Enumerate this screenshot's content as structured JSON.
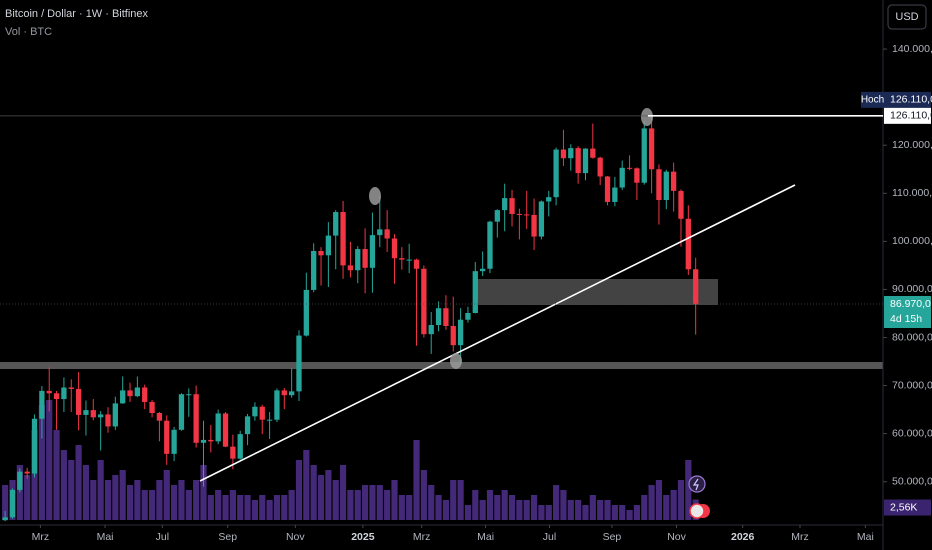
{
  "chart_data": {
    "type": "candlestick",
    "title": "Bitcoin / Dollar · 1W · Bitfinex",
    "currency": "USD",
    "up_color": "#26a69a",
    "down_color": "#f23645",
    "ylim": [
      41000,
      150000
    ],
    "yticks": [
      {
        "value": 50000,
        "label": "50.000,0"
      },
      {
        "value": 60000,
        "label": "60.000,0"
      },
      {
        "value": 70000,
        "label": "70.000,0"
      },
      {
        "value": 80000,
        "label": "80.000,0"
      },
      {
        "value": 90000,
        "label": "90.000,0"
      },
      {
        "value": 100000,
        "label": "100.000,0"
      },
      {
        "value": 110000,
        "label": "110.000,0"
      },
      {
        "value": 120000,
        "label": "120.000,0"
      },
      {
        "value": 140000,
        "label": "140.000,0"
      }
    ],
    "xlim": [
      -0.7,
      119.5
    ],
    "xticks": [
      {
        "value": 4.8,
        "label": "Mrz"
      },
      {
        "value": 13.6,
        "label": "Mai"
      },
      {
        "value": 21.4,
        "label": "Jul"
      },
      {
        "value": 30.3,
        "label": "Sep"
      },
      {
        "value": 39.5,
        "label": "Nov"
      },
      {
        "value": 48.7,
        "label": "2025"
      },
      {
        "value": 56.7,
        "label": "Mrz"
      },
      {
        "value": 65.4,
        "label": "Mai"
      },
      {
        "value": 74.1,
        "label": "Jul"
      },
      {
        "value": 82.6,
        "label": "Sep"
      },
      {
        "value": 91.4,
        "label": "Nov"
      },
      {
        "value": 100.4,
        "label": "2026"
      },
      {
        "value": 108.2,
        "label": "Mrz"
      },
      {
        "value": 117.1,
        "label": "Mai"
      }
    ],
    "open": [
      42000,
      42600,
      48300,
      52100,
      51700,
      63100,
      68900,
      68400,
      67200,
      69600,
      69300,
      63900,
      64900,
      63400,
      64000,
      61500,
      66300,
      69000,
      67800,
      69600,
      66600,
      64300,
      62700,
      55800,
      60800,
      68200,
      68200,
      58100,
      58700,
      58400,
      64200,
      57300,
      54800,
      59900,
      63600,
      65600,
      62900,
      62900,
      69000,
      68000,
      68800,
      80400,
      89900,
      98000,
      97100,
      101200,
      106100,
      95000,
      94000,
      98400,
      94500,
      101300,
      102500,
      100600,
      96500,
      96200,
      96200,
      94300,
      80700,
      82600,
      86100,
      82400,
      78400,
      83700,
      85100,
      93800,
      94300,
      104100,
      106500,
      109000,
      105700,
      105600,
      105500,
      101000,
      108300,
      109200,
      119100,
      117300,
      119400,
      114200,
      119300,
      117400,
      113500,
      108200,
      111200,
      115300,
      115200,
      112200,
      123500,
      115000,
      108600,
      114500,
      110500,
      104700,
      94200
    ],
    "high": [
      43900,
      48600,
      52800,
      52900,
      64000,
      69900,
      73800,
      68900,
      71700,
      71300,
      72800,
      66900,
      67200,
      64700,
      65500,
      67700,
      71900,
      70600,
      71900,
      70200,
      67000,
      64500,
      63800,
      61400,
      68400,
      69400,
      70000,
      62700,
      61800,
      65000,
      64500,
      59800,
      60600,
      64100,
      66500,
      66000,
      64500,
      69400,
      69500,
      73600,
      81500,
      93500,
      99600,
      98800,
      104000,
      106500,
      108400,
      99900,
      99000,
      102700,
      106000,
      109400,
      106500,
      101500,
      98800,
      99500,
      96400,
      95000,
      85300,
      87500,
      88800,
      88500,
      86100,
      86400,
      95700,
      97900,
      104300,
      106700,
      112000,
      110700,
      106800,
      110500,
      108900,
      108500,
      110500,
      119500,
      123200,
      120200,
      119800,
      119400,
      124500,
      117600,
      113600,
      113400,
      116800,
      117900,
      115400,
      125000,
      126110,
      116000,
      114900,
      116400,
      110800,
      107500,
      96600
    ],
    "low": [
      41800,
      42300,
      47800,
      50600,
      50900,
      59000,
      64600,
      60800,
      64500,
      64500,
      60700,
      59600,
      62800,
      56500,
      60200,
      60800,
      66200,
      66600,
      67600,
      65100,
      63400,
      58400,
      53500,
      54300,
      60600,
      63500,
      57100,
      49000,
      56100,
      57800,
      57200,
      52600,
      54600,
      57600,
      62700,
      59900,
      58900,
      62400,
      65100,
      67500,
      66800,
      80200,
      89400,
      90800,
      90500,
      94200,
      92200,
      92500,
      91300,
      89200,
      89300,
      98800,
      97800,
      91200,
      94100,
      93400,
      78300,
      80000,
      76600,
      81300,
      81600,
      77100,
      74400,
      83100,
      85000,
      92800,
      93400,
      100800,
      102100,
      103100,
      100400,
      102600,
      98200,
      100400,
      105200,
      107500,
      115700,
      114700,
      112000,
      112700,
      117200,
      111700,
      107500,
      107300,
      110700,
      114800,
      108600,
      111800,
      110000,
      103500,
      106700,
      106200,
      98900,
      93000,
      80600
    ],
    "close": [
      42600,
      48300,
      52100,
      51700,
      63100,
      68900,
      68400,
      67200,
      69600,
      69300,
      63900,
      64900,
      63400,
      64000,
      61500,
      66300,
      69000,
      67800,
      69600,
      66600,
      64300,
      62700,
      55800,
      60800,
      68200,
      68200,
      58100,
      58700,
      58400,
      64200,
      57300,
      54800,
      59900,
      63600,
      65600,
      62900,
      62900,
      69000,
      68000,
      68800,
      80400,
      89900,
      98000,
      97100,
      101200,
      106100,
      95000,
      94000,
      98400,
      94500,
      101300,
      102500,
      100600,
      96500,
      96200,
      96200,
      94300,
      80700,
      82600,
      86100,
      82400,
      78400,
      83700,
      85100,
      93800,
      94300,
      104100,
      106500,
      109000,
      105700,
      105600,
      105500,
      101000,
      108300,
      109200,
      119100,
      117300,
      119400,
      114200,
      119300,
      117400,
      113500,
      108200,
      111200,
      115300,
      115200,
      112200,
      123500,
      115000,
      108600,
      114500,
      110500,
      104700,
      94200,
      86970
    ],
    "volume": {
      "name": "Vol · BTC",
      "color": "#4b2d86",
      "values": [
        4375,
        5000,
        6875,
        5625,
        11250,
        14375,
        15000,
        11250,
        8750,
        7500,
        9375,
        6875,
        5000,
        7500,
        5000,
        5625,
        6250,
        4375,
        5000,
        3750,
        3750,
        5000,
        6250,
        4375,
        5000,
        3750,
        5000,
        6875,
        3125,
        3750,
        3125,
        3750,
        3125,
        3125,
        2500,
        3125,
        2500,
        3125,
        3125,
        3750,
        7500,
        8750,
        6875,
        5625,
        6250,
        5000,
        6875,
        3750,
        3750,
        4375,
        4375,
        4375,
        3750,
        5000,
        3125,
        3125,
        10000,
        6250,
        4375,
        3125,
        2500,
        5000,
        5000,
        1875,
        3750,
        2500,
        3750,
        3125,
        3750,
        3125,
        2500,
        2500,
        3125,
        1875,
        1875,
        4375,
        3750,
        2500,
        2500,
        1875,
        3125,
        2500,
        2500,
        1875,
        1875,
        1250,
        1875,
        3125,
        4375,
        5000,
        3125,
        3750,
        5000,
        7500,
        2560
      ],
      "value_labels": [
        null,
        null,
        null,
        null,
        null,
        null,
        null,
        null,
        null,
        null,
        null,
        null,
        null,
        null,
        null,
        null,
        null,
        null,
        null,
        null,
        null,
        null,
        null,
        null,
        null,
        null,
        null,
        null,
        null,
        null,
        null,
        null,
        null,
        null,
        null,
        null,
        null,
        null,
        null,
        null,
        null,
        null,
        null,
        null,
        null,
        null,
        null,
        null,
        null,
        null,
        null,
        null,
        null,
        null,
        null,
        null,
        null,
        null,
        null,
        null,
        null,
        null,
        null,
        null,
        null,
        null,
        null,
        null,
        null,
        null,
        null,
        null,
        null,
        null,
        null,
        null,
        null,
        null,
        null,
        null,
        null,
        null,
        null,
        null,
        null,
        null,
        null,
        null,
        null,
        null,
        null,
        null,
        null,
        null,
        "2,56K"
      ]
    },
    "high_marker": {
      "name": "Hoch",
      "value": 126110,
      "value_label": "126.110,0"
    },
    "last_price": {
      "value": 86970,
      "value_label": "86.970,0",
      "countdown": "4d 15h"
    }
  }
}
